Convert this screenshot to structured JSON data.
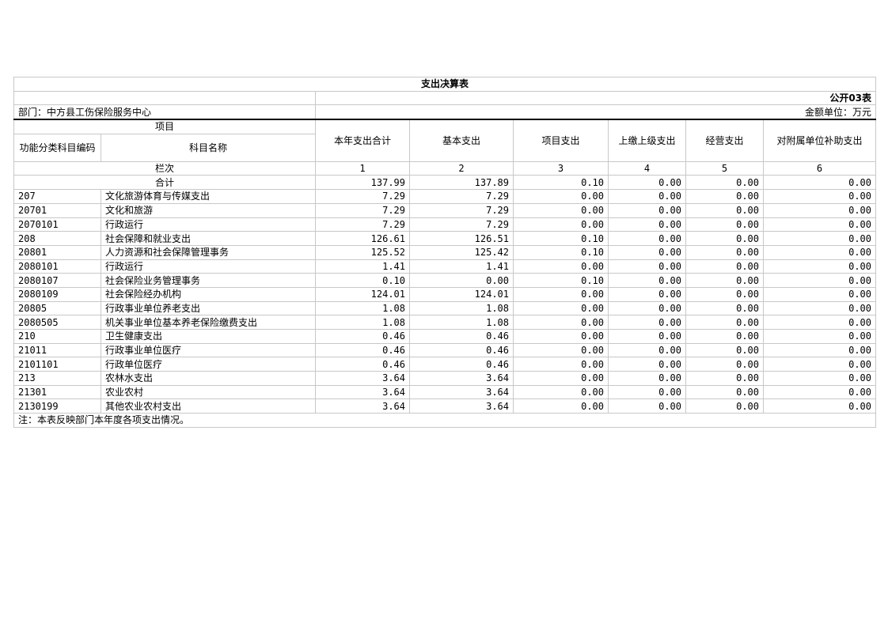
{
  "title": "支出决算表",
  "form_no": "公开03表",
  "department": "部门：中方县工伤保险服务中心",
  "unit": "金额单位：万元",
  "header": {
    "item": "项目",
    "code": "功能分类科目编码",
    "name": "科目名称",
    "cols": [
      "本年支出合计",
      "基本支出",
      "项目支出",
      "上缴上级支出",
      "经营支出",
      "对附属单位补助支出"
    ]
  },
  "col_index_label": "栏次",
  "col_index": [
    "1",
    "2",
    "3",
    "4",
    "5",
    "6"
  ],
  "total_label": "合计",
  "total": [
    "137.99",
    "137.89",
    "0.10",
    "0.00",
    "0.00",
    "0.00"
  ],
  "rows": [
    {
      "code": "207",
      "name": "文化旅游体育与传媒支出",
      "v": [
        "7.29",
        "7.29",
        "0.00",
        "0.00",
        "0.00",
        "0.00"
      ]
    },
    {
      "code": "20701",
      "name": "文化和旅游",
      "v": [
        "7.29",
        "7.29",
        "0.00",
        "0.00",
        "0.00",
        "0.00"
      ]
    },
    {
      "code": "2070101",
      "name": "行政运行",
      "v": [
        "7.29",
        "7.29",
        "0.00",
        "0.00",
        "0.00",
        "0.00"
      ]
    },
    {
      "code": "208",
      "name": "社会保障和就业支出",
      "v": [
        "126.61",
        "126.51",
        "0.10",
        "0.00",
        "0.00",
        "0.00"
      ]
    },
    {
      "code": "20801",
      "name": "人力资源和社会保障管理事务",
      "v": [
        "125.52",
        "125.42",
        "0.10",
        "0.00",
        "0.00",
        "0.00"
      ]
    },
    {
      "code": "2080101",
      "name": "行政运行",
      "v": [
        "1.41",
        "1.41",
        "0.00",
        "0.00",
        "0.00",
        "0.00"
      ]
    },
    {
      "code": "2080107",
      "name": "社会保险业务管理事务",
      "v": [
        "0.10",
        "0.00",
        "0.10",
        "0.00",
        "0.00",
        "0.00"
      ]
    },
    {
      "code": "2080109",
      "name": "社会保险经办机构",
      "v": [
        "124.01",
        "124.01",
        "0.00",
        "0.00",
        "0.00",
        "0.00"
      ]
    },
    {
      "code": "20805",
      "name": "行政事业单位养老支出",
      "v": [
        "1.08",
        "1.08",
        "0.00",
        "0.00",
        "0.00",
        "0.00"
      ]
    },
    {
      "code": "2080505",
      "name": "机关事业单位基本养老保险缴费支出",
      "v": [
        "1.08",
        "1.08",
        "0.00",
        "0.00",
        "0.00",
        "0.00"
      ]
    },
    {
      "code": "210",
      "name": "卫生健康支出",
      "v": [
        "0.46",
        "0.46",
        "0.00",
        "0.00",
        "0.00",
        "0.00"
      ]
    },
    {
      "code": "21011",
      "name": "行政事业单位医疗",
      "v": [
        "0.46",
        "0.46",
        "0.00",
        "0.00",
        "0.00",
        "0.00"
      ]
    },
    {
      "code": "2101101",
      "name": "行政单位医疗",
      "v": [
        "0.46",
        "0.46",
        "0.00",
        "0.00",
        "0.00",
        "0.00"
      ]
    },
    {
      "code": "213",
      "name": "农林水支出",
      "v": [
        "3.64",
        "3.64",
        "0.00",
        "0.00",
        "0.00",
        "0.00"
      ]
    },
    {
      "code": "21301",
      "name": "农业农村",
      "v": [
        "3.64",
        "3.64",
        "0.00",
        "0.00",
        "0.00",
        "0.00"
      ]
    },
    {
      "code": "2130199",
      "name": "其他农业农村支出",
      "v": [
        "3.64",
        "3.64",
        "0.00",
        "0.00",
        "0.00",
        "0.00"
      ]
    }
  ],
  "note": "注：本表反映部门本年度各项支出情况。"
}
